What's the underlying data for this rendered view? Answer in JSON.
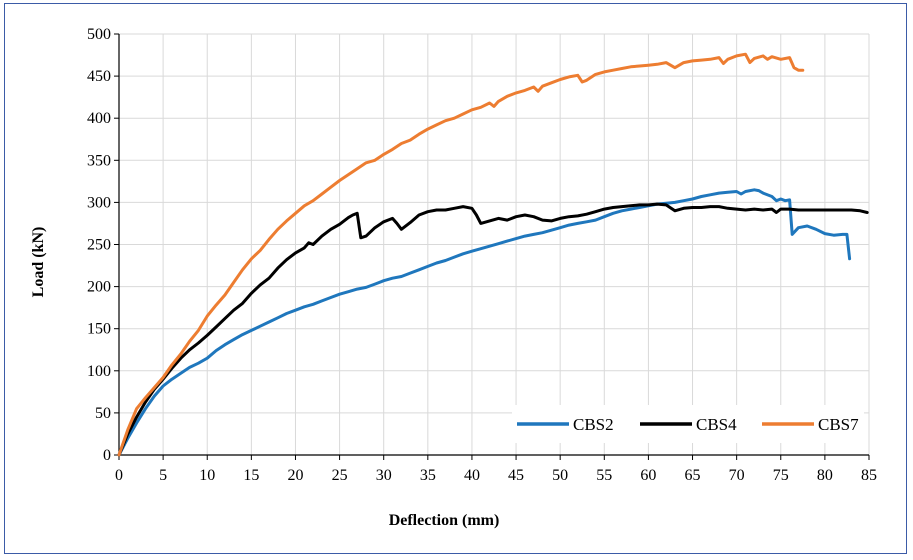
{
  "chart_data": {
    "type": "line",
    "xlabel": "Deflection (mm)",
    "ylabel": "Load (kN)",
    "xlim": [
      0,
      85
    ],
    "ylim": [
      0,
      500
    ],
    "xticks": [
      "0",
      "5",
      "10",
      "15",
      "20",
      "25",
      "30",
      "35",
      "40",
      "45",
      "50",
      "55",
      "60",
      "65",
      "70",
      "75",
      "80",
      "85"
    ],
    "yticks": [
      "0",
      "50",
      "100",
      "150",
      "200",
      "250",
      "300",
      "350",
      "400",
      "450",
      "500"
    ],
    "grid": true,
    "legend_position": "bottom-right",
    "series": [
      {
        "name": "CBS2",
        "color": "#1f77bd",
        "points": [
          [
            0,
            0
          ],
          [
            1,
            20
          ],
          [
            2,
            38
          ],
          [
            3,
            55
          ],
          [
            4,
            70
          ],
          [
            5,
            82
          ],
          [
            6,
            90
          ],
          [
            7,
            97
          ],
          [
            8,
            104
          ],
          [
            9,
            109
          ],
          [
            10,
            115
          ],
          [
            11,
            124
          ],
          [
            12,
            131
          ],
          [
            13,
            137
          ],
          [
            14,
            143
          ],
          [
            15,
            148
          ],
          [
            16,
            153
          ],
          [
            17,
            158
          ],
          [
            18,
            163
          ],
          [
            19,
            168
          ],
          [
            20,
            172
          ],
          [
            21,
            176
          ],
          [
            22,
            179
          ],
          [
            23,
            183
          ],
          [
            24,
            187
          ],
          [
            25,
            191
          ],
          [
            26,
            194
          ],
          [
            27,
            197
          ],
          [
            28,
            199
          ],
          [
            29,
            203
          ],
          [
            30,
            207
          ],
          [
            31,
            210
          ],
          [
            32,
            212
          ],
          [
            33,
            216
          ],
          [
            34,
            220
          ],
          [
            35,
            224
          ],
          [
            36,
            228
          ],
          [
            37,
            231
          ],
          [
            38,
            235
          ],
          [
            39,
            239
          ],
          [
            40,
            242
          ],
          [
            41,
            245
          ],
          [
            42,
            248
          ],
          [
            43,
            251
          ],
          [
            44,
            254
          ],
          [
            45,
            257
          ],
          [
            46,
            260
          ],
          [
            47,
            262
          ],
          [
            48,
            264
          ],
          [
            49,
            267
          ],
          [
            50,
            270
          ],
          [
            51,
            273
          ],
          [
            52,
            275
          ],
          [
            53,
            277
          ],
          [
            54,
            279
          ],
          [
            55,
            283
          ],
          [
            56,
            287
          ],
          [
            57,
            290
          ],
          [
            58,
            292
          ],
          [
            59,
            294
          ],
          [
            60,
            296
          ],
          [
            61,
            298
          ],
          [
            62,
            299
          ],
          [
            63,
            300
          ],
          [
            64,
            302
          ],
          [
            65,
            304
          ],
          [
            66,
            307
          ],
          [
            67,
            309
          ],
          [
            68,
            311
          ],
          [
            69,
            312
          ],
          [
            70,
            313
          ],
          [
            70.5,
            310
          ],
          [
            71,
            313
          ],
          [
            72,
            315
          ],
          [
            72.5,
            314
          ],
          [
            73,
            311
          ],
          [
            74,
            307
          ],
          [
            74.5,
            302
          ],
          [
            75,
            304
          ],
          [
            75.5,
            302
          ],
          [
            76,
            303
          ],
          [
            76.3,
            262
          ],
          [
            77,
            270
          ],
          [
            78,
            272
          ],
          [
            79,
            268
          ],
          [
            80,
            263
          ],
          [
            81,
            261
          ],
          [
            82,
            262
          ],
          [
            82.5,
            262
          ],
          [
            82.8,
            233
          ]
        ]
      },
      {
        "name": "CBS4",
        "color": "#000000",
        "points": [
          [
            0,
            0
          ],
          [
            1,
            25
          ],
          [
            2,
            45
          ],
          [
            3,
            63
          ],
          [
            4,
            78
          ],
          [
            5,
            90
          ],
          [
            6,
            103
          ],
          [
            7,
            115
          ],
          [
            8,
            125
          ],
          [
            9,
            133
          ],
          [
            10,
            142
          ],
          [
            11,
            152
          ],
          [
            12,
            162
          ],
          [
            13,
            172
          ],
          [
            14,
            180
          ],
          [
            15,
            192
          ],
          [
            16,
            202
          ],
          [
            17,
            210
          ],
          [
            18,
            222
          ],
          [
            19,
            232
          ],
          [
            20,
            240
          ],
          [
            21,
            246
          ],
          [
            21.5,
            252
          ],
          [
            22,
            250
          ],
          [
            23,
            260
          ],
          [
            24,
            268
          ],
          [
            25,
            274
          ],
          [
            26,
            282
          ],
          [
            26.5,
            285
          ],
          [
            27,
            287
          ],
          [
            27.4,
            258
          ],
          [
            28,
            260
          ],
          [
            29,
            270
          ],
          [
            30,
            277
          ],
          [
            31,
            281
          ],
          [
            31.5,
            275
          ],
          [
            32,
            268
          ],
          [
            33,
            276
          ],
          [
            34,
            285
          ],
          [
            35,
            289
          ],
          [
            36,
            291
          ],
          [
            37,
            291
          ],
          [
            38,
            293
          ],
          [
            39,
            295
          ],
          [
            40,
            293
          ],
          [
            40.5,
            285
          ],
          [
            41,
            275
          ],
          [
            42,
            278
          ],
          [
            43,
            281
          ],
          [
            44,
            279
          ],
          [
            45,
            283
          ],
          [
            46,
            285
          ],
          [
            47,
            283
          ],
          [
            48,
            279
          ],
          [
            49,
            278
          ],
          [
            50,
            281
          ],
          [
            51,
            283
          ],
          [
            52,
            284
          ],
          [
            53,
            286
          ],
          [
            54,
            289
          ],
          [
            55,
            292
          ],
          [
            56,
            294
          ],
          [
            57,
            295
          ],
          [
            58,
            296
          ],
          [
            59,
            297
          ],
          [
            60,
            297
          ],
          [
            61,
            298
          ],
          [
            62,
            297
          ],
          [
            63,
            290
          ],
          [
            64,
            293
          ],
          [
            65,
            294
          ],
          [
            66,
            294
          ],
          [
            67,
            295
          ],
          [
            68,
            295
          ],
          [
            69,
            293
          ],
          [
            70,
            292
          ],
          [
            71,
            291
          ],
          [
            72,
            292
          ],
          [
            73,
            291
          ],
          [
            74,
            292
          ],
          [
            74.5,
            288
          ],
          [
            75,
            292
          ],
          [
            76,
            292
          ],
          [
            77,
            291
          ],
          [
            78,
            291
          ],
          [
            79,
            291
          ],
          [
            80,
            291
          ],
          [
            81,
            291
          ],
          [
            82,
            291
          ],
          [
            83,
            291
          ],
          [
            84,
            290
          ],
          [
            84.8,
            288
          ]
        ]
      },
      {
        "name": "CBS7",
        "color": "#ed7d31",
        "points": [
          [
            0,
            0
          ],
          [
            1,
            30
          ],
          [
            2,
            55
          ],
          [
            3,
            68
          ],
          [
            4,
            80
          ],
          [
            5,
            92
          ],
          [
            6,
            107
          ],
          [
            7,
            120
          ],
          [
            8,
            135
          ],
          [
            9,
            148
          ],
          [
            10,
            165
          ],
          [
            11,
            178
          ],
          [
            12,
            190
          ],
          [
            13,
            205
          ],
          [
            14,
            220
          ],
          [
            15,
            233
          ],
          [
            16,
            243
          ],
          [
            17,
            256
          ],
          [
            18,
            268
          ],
          [
            19,
            278
          ],
          [
            20,
            287
          ],
          [
            21,
            296
          ],
          [
            22,
            302
          ],
          [
            23,
            310
          ],
          [
            24,
            318
          ],
          [
            25,
            326
          ],
          [
            26,
            333
          ],
          [
            27,
            340
          ],
          [
            28,
            347
          ],
          [
            29,
            350
          ],
          [
            30,
            357
          ],
          [
            31,
            363
          ],
          [
            32,
            370
          ],
          [
            33,
            374
          ],
          [
            34,
            381
          ],
          [
            35,
            387
          ],
          [
            36,
            392
          ],
          [
            37,
            397
          ],
          [
            38,
            400
          ],
          [
            39,
            405
          ],
          [
            40,
            410
          ],
          [
            41,
            413
          ],
          [
            42,
            418
          ],
          [
            42.5,
            414
          ],
          [
            43,
            420
          ],
          [
            44,
            426
          ],
          [
            45,
            430
          ],
          [
            46,
            433
          ],
          [
            47,
            437
          ],
          [
            47.5,
            432
          ],
          [
            48,
            438
          ],
          [
            49,
            442
          ],
          [
            50,
            446
          ],
          [
            51,
            449
          ],
          [
            52,
            451
          ],
          [
            52.5,
            443
          ],
          [
            53,
            445
          ],
          [
            54,
            452
          ],
          [
            55,
            455
          ],
          [
            56,
            457
          ],
          [
            57,
            459
          ],
          [
            58,
            461
          ],
          [
            59,
            462
          ],
          [
            60,
            463
          ],
          [
            61,
            464
          ],
          [
            62,
            466
          ],
          [
            63,
            460
          ],
          [
            64,
            466
          ],
          [
            65,
            468
          ],
          [
            66,
            469
          ],
          [
            67,
            470
          ],
          [
            68,
            472
          ],
          [
            68.5,
            465
          ],
          [
            69,
            470
          ],
          [
            70,
            474
          ],
          [
            71,
            476
          ],
          [
            71.5,
            466
          ],
          [
            72,
            471
          ],
          [
            73,
            474
          ],
          [
            73.5,
            470
          ],
          [
            74,
            473
          ],
          [
            75,
            470
          ],
          [
            76,
            472
          ],
          [
            76.5,
            460
          ],
          [
            77,
            457
          ],
          [
            77.5,
            457
          ]
        ]
      }
    ]
  }
}
